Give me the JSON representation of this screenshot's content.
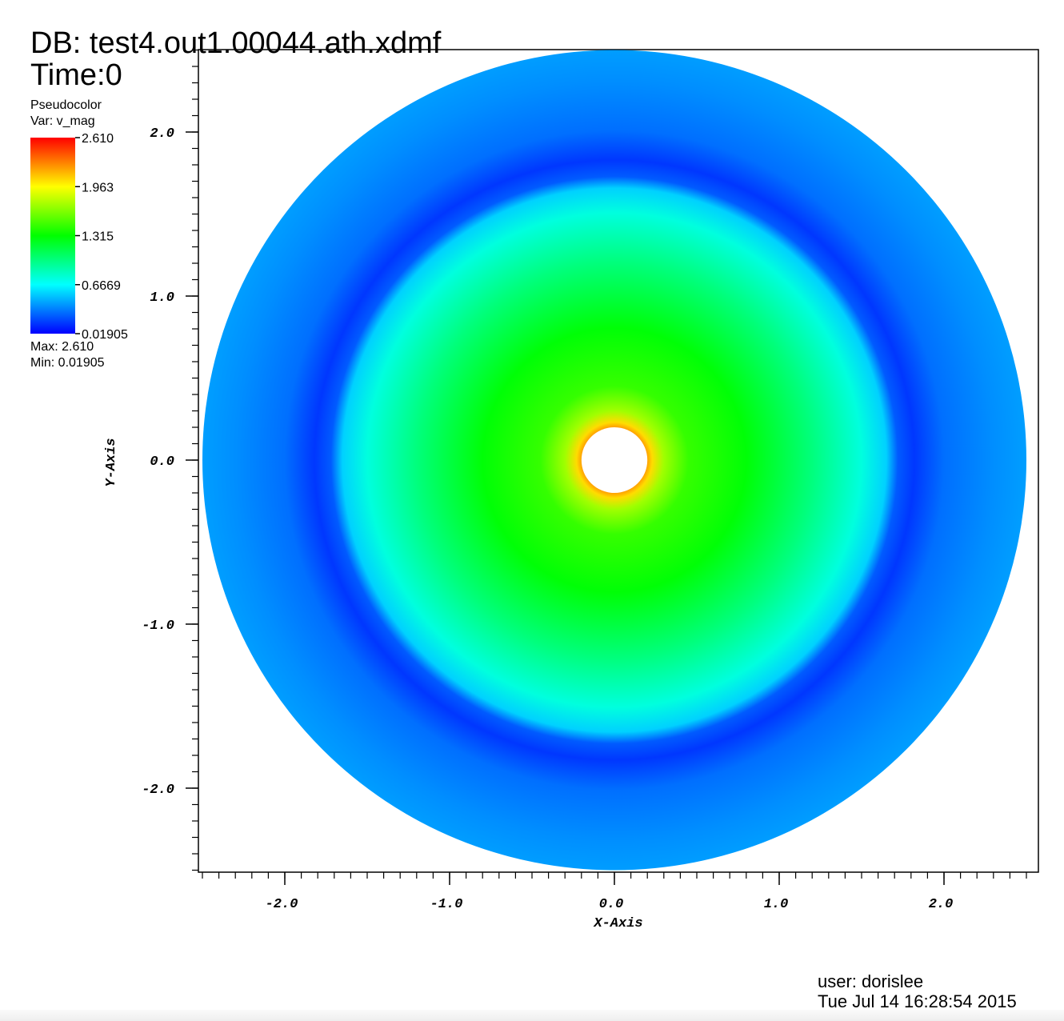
{
  "header": {
    "db_label": "DB: test4.out1.00044.ath.xdmf",
    "time_label": "Time:0"
  },
  "legend": {
    "plot_type": "Pseudocolor",
    "variable": "Var: v_mag",
    "ticks": [
      "2.610",
      "1.963",
      "1.315",
      "0.6669",
      "0.01905"
    ],
    "max_label": "Max:  2.610",
    "min_label": "Min:  0.01905",
    "colormap": [
      "#0000ff",
      "#00ffff",
      "#00ff00",
      "#ffff00",
      "#ff0000"
    ]
  },
  "footer": {
    "user": "user: dorislee",
    "date": "Tue Jul 14 16:28:54 2015"
  },
  "chart_data": {
    "type": "heatmap",
    "variable": "v_mag",
    "value_range": [
      0.01905,
      2.61
    ],
    "xlabel": "X-Axis",
    "ylabel": "Y-Axis",
    "xlim": [
      -2.5,
      2.6
    ],
    "ylim": [
      -2.5,
      2.5
    ],
    "xticks": [
      {
        "value": -2.0,
        "label": "-2.0"
      },
      {
        "value": -1.0,
        "label": "-1.0"
      },
      {
        "value": 0.0,
        "label": "0.0"
      },
      {
        "value": 1.0,
        "label": "1.0"
      },
      {
        "value": 2.0,
        "label": "2.0"
      }
    ],
    "yticks": [
      {
        "value": 2.0,
        "label": "2.0"
      },
      {
        "value": 1.0,
        "label": "1.0"
      },
      {
        "value": 0.0,
        "label": "0.0"
      },
      {
        "value": -1.0,
        "label": "-1.0"
      },
      {
        "value": -2.0,
        "label": "-2.0"
      }
    ],
    "domain": {
      "shape": "annulus",
      "inner_radius": 0.2,
      "outer_radius": 2.5
    },
    "radial_profile": [
      {
        "r": 0.2,
        "v": 2.2
      },
      {
        "r": 0.23,
        "v": 2.05
      },
      {
        "r": 0.3,
        "v": 1.72
      },
      {
        "r": 0.45,
        "v": 1.45
      },
      {
        "r": 0.8,
        "v": 1.3
      },
      {
        "r": 1.2,
        "v": 1.0
      },
      {
        "r": 1.5,
        "v": 0.75
      },
      {
        "r": 1.65,
        "v": 0.55
      },
      {
        "r": 1.72,
        "v": 0.25
      },
      {
        "r": 1.82,
        "v": 0.16
      },
      {
        "r": 2.0,
        "v": 0.3
      },
      {
        "r": 2.3,
        "v": 0.38
      },
      {
        "r": 2.5,
        "v": 0.42
      }
    ]
  }
}
